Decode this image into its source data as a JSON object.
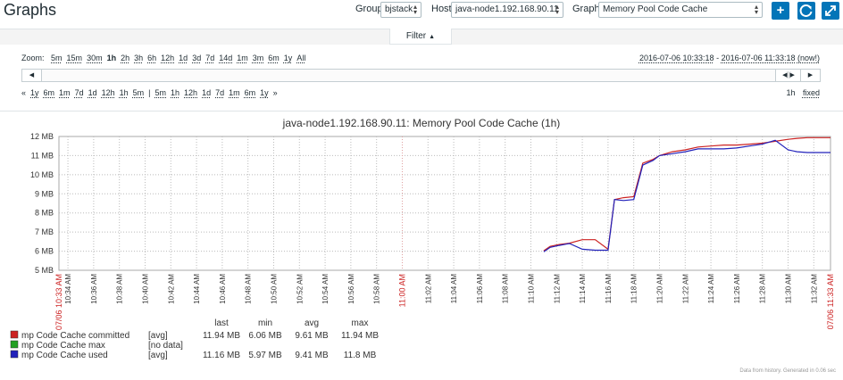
{
  "header": {
    "title": "Graphs",
    "group_label": "Group",
    "group_value": "bjstack",
    "host_label": "Host",
    "host_value": "java-node1.192.168.90.11",
    "graph_label": "Graph",
    "graph_value": "Memory Pool Code Cache",
    "accent_color": "#0275b8"
  },
  "filter": {
    "tab_label": "Filter",
    "zoom_label": "Zoom:",
    "zoom_links": [
      "5m",
      "15m",
      "30m",
      "1h",
      "2h",
      "3h",
      "6h",
      "12h",
      "1d",
      "3d",
      "7d",
      "14d",
      "1m",
      "3m",
      "6m",
      "1y",
      "All"
    ],
    "zoom_active": "1h",
    "range_from": "2016-07-06 10:33:18",
    "range_sep": " - ",
    "range_to": "2016-07-06 11:33:18",
    "range_now": "(now!)",
    "back_prefix": "«",
    "back_links": [
      "1y",
      "6m",
      "1m",
      "7d",
      "1d",
      "12h",
      "1h",
      "5m"
    ],
    "sep": "|",
    "fwd_links": [
      "5m",
      "1h",
      "12h",
      "1d",
      "7d",
      "1m",
      "6m",
      "1y"
    ],
    "fwd_suffix": "»",
    "period_label": "1h",
    "fixed_label": "fixed"
  },
  "chart_data": {
    "type": "line",
    "title": "java-node1.192.168.90.11: Memory Pool Code Cache (1h)",
    "y_unit": "MB",
    "ylim": [
      5,
      12
    ],
    "y_ticks": [
      "5 MB",
      "6 MB",
      "7 MB",
      "8 MB",
      "9 MB",
      "10 MB",
      "11 MB",
      "12 MB"
    ],
    "x_ticks": [
      "07/06 10:33 AM",
      "10:34 AM",
      "10:36 AM",
      "10:38 AM",
      "10:40 AM",
      "10:42 AM",
      "10:44 AM",
      "10:46 AM",
      "10:48 AM",
      "10:50 AM",
      "10:52 AM",
      "10:54 AM",
      "10:56 AM",
      "10:58 AM",
      "11:00 AM",
      "11:02 AM",
      "11:04 AM",
      "11:06 AM",
      "11:08 AM",
      "11:10 AM",
      "11:12 AM",
      "11:14 AM",
      "11:16 AM",
      "11:18 AM",
      "11:20 AM",
      "11:22 AM",
      "11:24 AM",
      "11:26 AM",
      "11:28 AM",
      "11:30 AM",
      "11:32 AM",
      "07/06 11:33 AM"
    ],
    "grid": true,
    "series": [
      {
        "name": "mp Code Cache committed",
        "color": "#cc2222",
        "func": "[avg]",
        "last": "11.94 MB",
        "min": "6.06 MB",
        "avg": "9.61 MB",
        "max": "11.94 MB",
        "x_minutes": [
          11.0,
          11.5,
          12.2,
          13.0,
          14.0,
          15.0,
          16.0,
          16.5,
          17.2,
          18.0,
          18.7,
          19.5,
          20.0,
          21.0,
          22.0,
          23.0,
          24.0,
          25.0,
          26.0,
          27.0,
          28.0,
          29.0,
          30.0,
          30.7,
          31.5,
          32.5,
          33.3
        ],
        "values": [
          6.02,
          6.25,
          6.35,
          6.42,
          6.6,
          6.6,
          6.1,
          8.7,
          8.8,
          8.85,
          10.6,
          10.8,
          11.0,
          11.2,
          11.3,
          11.45,
          11.5,
          11.55,
          11.55,
          11.6,
          11.65,
          11.75,
          11.85,
          11.9,
          11.94,
          11.94,
          11.94
        ]
      },
      {
        "name": "mp Code Cache max",
        "color": "#22a022",
        "func": "[no data]",
        "last": "",
        "min": "",
        "avg": "",
        "max": ""
      },
      {
        "name": "mp Code Cache used",
        "color": "#2222bb",
        "func": "[avg]",
        "last": "11.16 MB",
        "min": "5.97 MB",
        "avg": "9.41 MB",
        "max": "11.8 MB",
        "x_minutes": [
          11.0,
          11.5,
          12.2,
          13.0,
          14.0,
          15.0,
          16.0,
          16.5,
          17.2,
          18.0,
          18.7,
          19.5,
          20.0,
          21.0,
          22.0,
          23.0,
          24.0,
          25.0,
          26.0,
          27.0,
          28.0,
          29.0,
          30.0,
          30.7,
          31.5,
          32.5,
          33.3
        ],
        "values": [
          5.97,
          6.2,
          6.3,
          6.4,
          6.1,
          6.05,
          6.05,
          8.7,
          8.65,
          8.7,
          10.5,
          10.75,
          11.0,
          11.1,
          11.2,
          11.35,
          11.35,
          11.35,
          11.4,
          11.5,
          11.6,
          11.8,
          11.3,
          11.2,
          11.16,
          11.16,
          11.16
        ]
      }
    ],
    "legend_headers": [
      "last",
      "min",
      "avg",
      "max"
    ],
    "footer_note": "Data from history. Generated in 0.06 sec"
  }
}
